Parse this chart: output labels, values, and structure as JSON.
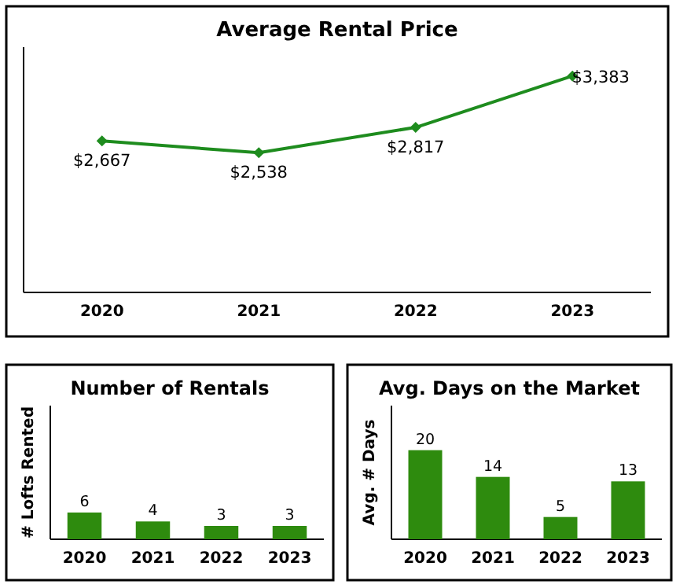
{
  "chart_data": [
    {
      "type": "line",
      "title": "Average Rental Price",
      "categories": [
        "2020",
        "2021",
        "2022",
        "2023"
      ],
      "values": [
        2667,
        2538,
        2817,
        3383
      ],
      "value_labels": [
        "$2,667",
        "$2,538",
        "$2,817",
        "$3,383"
      ],
      "color": "#1e8c1e",
      "marker": "diamond",
      "ylim": [
        1000,
        3700
      ]
    },
    {
      "type": "bar",
      "title": "Number of Rentals",
      "ylabel": "# Lofts Rented",
      "categories": [
        "2020",
        "2021",
        "2022",
        "2023"
      ],
      "values": [
        6,
        4,
        3,
        3
      ],
      "data_labels": true,
      "color": "#2e8b0e",
      "ylim": [
        0,
        30
      ]
    },
    {
      "type": "bar",
      "title": "Avg. Days on the Market",
      "ylabel": "Avg. # Days",
      "categories": [
        "2020",
        "2021",
        "2022",
        "2023"
      ],
      "values": [
        20,
        14,
        5,
        13
      ],
      "data_labels": true,
      "color": "#2e8b0e",
      "ylim": [
        0,
        30
      ]
    }
  ]
}
